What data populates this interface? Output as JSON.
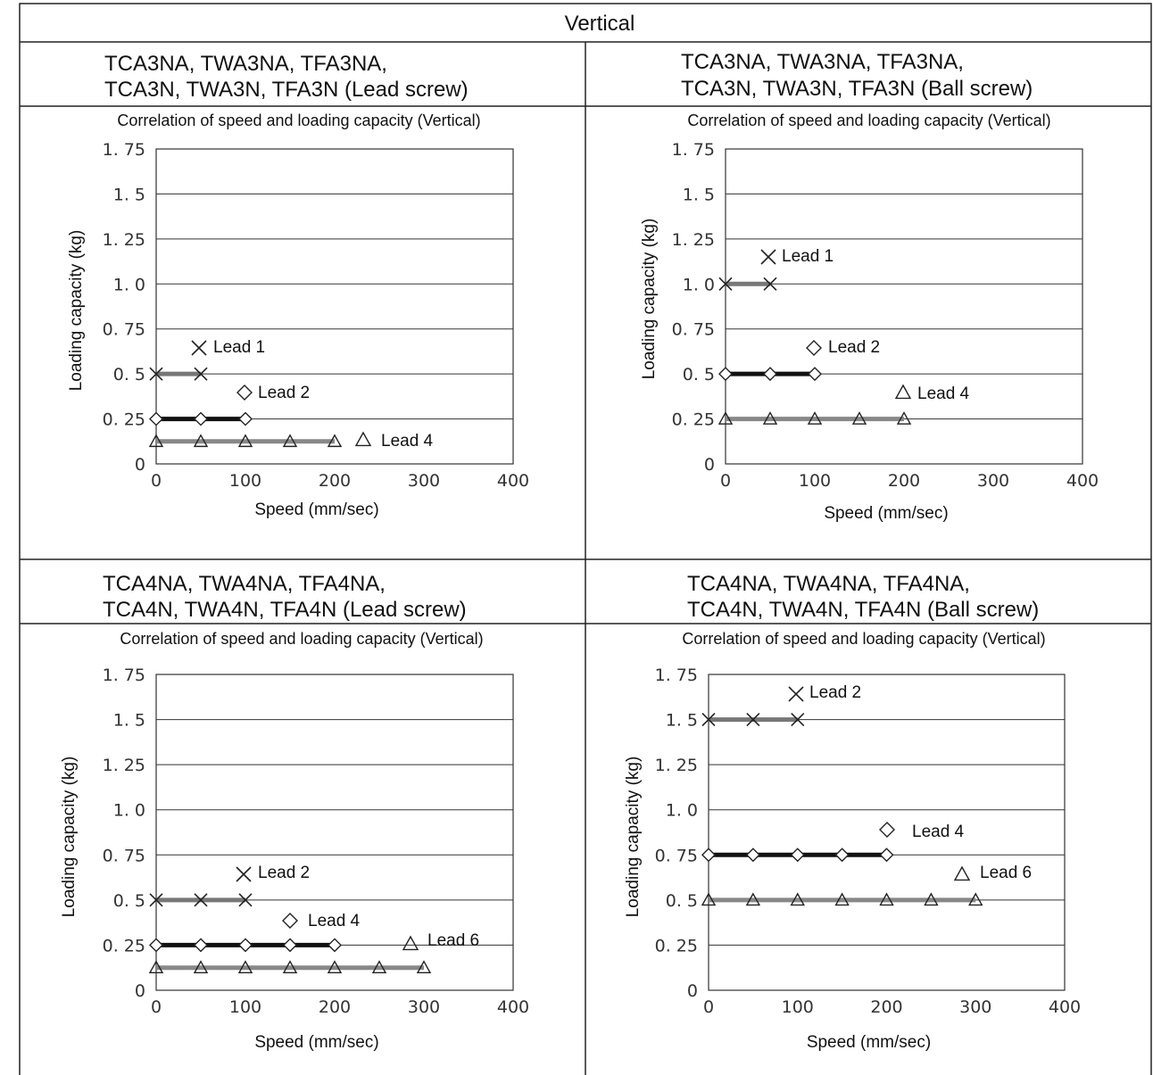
{
  "header": {
    "title": "Vertical"
  },
  "panels": [
    {
      "heading_line1": "TCA3NA, TWA3NA, TFA3NA,",
      "heading_line2": "TCA3N, TWA3N, TFA3N (Lead screw)",
      "chart_data": {
        "type": "line",
        "title": "Correlation of speed and loading capacity (Vertical)",
        "xlabel": "Speed (mm/sec)",
        "ylabel": "Loading capacity (kg)",
        "xlim": [
          0,
          400
        ],
        "ylim": [
          0,
          1.75
        ],
        "x_ticks": [
          "0",
          "100",
          "200",
          "300",
          "400"
        ],
        "y_ticks": [
          "0",
          "0. 25",
          "0. 5",
          "0. 75",
          "1. 0",
          "1. 25",
          "1. 5",
          "1. 75"
        ],
        "grid": "horizontal",
        "series": [
          {
            "name": "Lead 1",
            "marker": "cross",
            "color": "#777777",
            "x": [
              0,
              50
            ],
            "y": [
              0.5,
              0.5
            ]
          },
          {
            "name": "Lead 2",
            "marker": "diamond",
            "color": "#111111",
            "x": [
              0,
              50,
              100
            ],
            "y": [
              0.25,
              0.25,
              0.25
            ]
          },
          {
            "name": "Lead 4",
            "marker": "triangle",
            "color": "#888888",
            "x": [
              0,
              50,
              100,
              150,
              200
            ],
            "y": [
              0.125,
              0.125,
              0.125,
              0.125,
              0.125
            ]
          }
        ]
      }
    },
    {
      "heading_line1": "TCA3NA, TWA3NA, TFA3NA,",
      "heading_line2": "TCA3N, TWA3N, TFA3N (Ball screw)",
      "chart_data": {
        "type": "line",
        "title": "Correlation of speed and loading capacity (Vertical)",
        "xlabel": "Speed (mm/sec)",
        "ylabel": "Loading capacity (kg)",
        "xlim": [
          0,
          400
        ],
        "ylim": [
          0,
          1.75
        ],
        "x_ticks": [
          "0",
          "100",
          "200",
          "300",
          "400"
        ],
        "y_ticks": [
          "0",
          "0. 25",
          "0. 5",
          "0. 75",
          "1. 0",
          "1. 25",
          "1. 5",
          "1. 75"
        ],
        "grid": "horizontal",
        "series": [
          {
            "name": "Lead 1",
            "marker": "cross",
            "color": "#777777",
            "x": [
              0,
              50
            ],
            "y": [
              1.0,
              1.0
            ]
          },
          {
            "name": "Lead 2",
            "marker": "diamond",
            "color": "#111111",
            "x": [
              0,
              50,
              100
            ],
            "y": [
              0.5,
              0.5,
              0.5
            ]
          },
          {
            "name": "Lead 4",
            "marker": "triangle",
            "color": "#888888",
            "x": [
              0,
              50,
              100,
              150,
              200
            ],
            "y": [
              0.25,
              0.25,
              0.25,
              0.25,
              0.25
            ]
          }
        ]
      }
    },
    {
      "heading_line1": "TCA4NA, TWA4NA, TFA4NA,",
      "heading_line2": "TCA4N, TWA4N, TFA4N (Lead screw)",
      "chart_data": {
        "type": "line",
        "title": "Correlation of speed and loading capacity (Vertical)",
        "xlabel": "Speed (mm/sec)",
        "ylabel": "Loading capacity (kg)",
        "xlim": [
          0,
          400
        ],
        "ylim": [
          0,
          1.75
        ],
        "x_ticks": [
          "0",
          "100",
          "200",
          "300",
          "400"
        ],
        "y_ticks": [
          "0",
          "0. 25",
          "0. 5",
          "0. 75",
          "1. 0",
          "1. 25",
          "1. 5",
          "1. 75"
        ],
        "grid": "horizontal",
        "series": [
          {
            "name": "Lead 2",
            "marker": "cross",
            "color": "#777777",
            "x": [
              0,
              50,
              100
            ],
            "y": [
              0.5,
              0.5,
              0.5
            ]
          },
          {
            "name": "Lead 4",
            "marker": "diamond",
            "color": "#111111",
            "x": [
              0,
              50,
              100,
              150,
              200
            ],
            "y": [
              0.25,
              0.25,
              0.25,
              0.25,
              0.25
            ]
          },
          {
            "name": "Lead 6",
            "marker": "triangle",
            "color": "#888888",
            "x": [
              0,
              50,
              100,
              150,
              200,
              250,
              300
            ],
            "y": [
              0.125,
              0.125,
              0.125,
              0.125,
              0.125,
              0.125,
              0.125
            ]
          }
        ]
      }
    },
    {
      "heading_line1": "TCA4NA, TWA4NA, TFA4NA,",
      "heading_line2": "TCA4N, TWA4N, TFA4N (Ball screw)",
      "chart_data": {
        "type": "line",
        "title": "Correlation of speed and loading capacity (Vertical)",
        "xlabel": "Speed (mm/sec)",
        "ylabel": "Loading capacity (kg)",
        "xlim": [
          0,
          400
        ],
        "ylim": [
          0,
          1.75
        ],
        "x_ticks": [
          "0",
          "100",
          "200",
          "300",
          "400"
        ],
        "y_ticks": [
          "0",
          "0. 25",
          "0. 5",
          "0. 75",
          "1. 0",
          "1. 25",
          "1. 5",
          "1. 75"
        ],
        "grid": "horizontal",
        "series": [
          {
            "name": "Lead 2",
            "marker": "cross",
            "color": "#777777",
            "x": [
              0,
              50,
              100
            ],
            "y": [
              1.5,
              1.5,
              1.5
            ]
          },
          {
            "name": "Lead 4",
            "marker": "diamond",
            "color": "#111111",
            "x": [
              0,
              50,
              100,
              150,
              200
            ],
            "y": [
              0.75,
              0.75,
              0.75,
              0.75,
              0.75
            ]
          },
          {
            "name": "Lead 6",
            "marker": "triangle",
            "color": "#888888",
            "x": [
              0,
              50,
              100,
              150,
              200,
              250,
              300
            ],
            "y": [
              0.5,
              0.5,
              0.5,
              0.5,
              0.5,
              0.5,
              0.5
            ]
          }
        ]
      }
    }
  ]
}
